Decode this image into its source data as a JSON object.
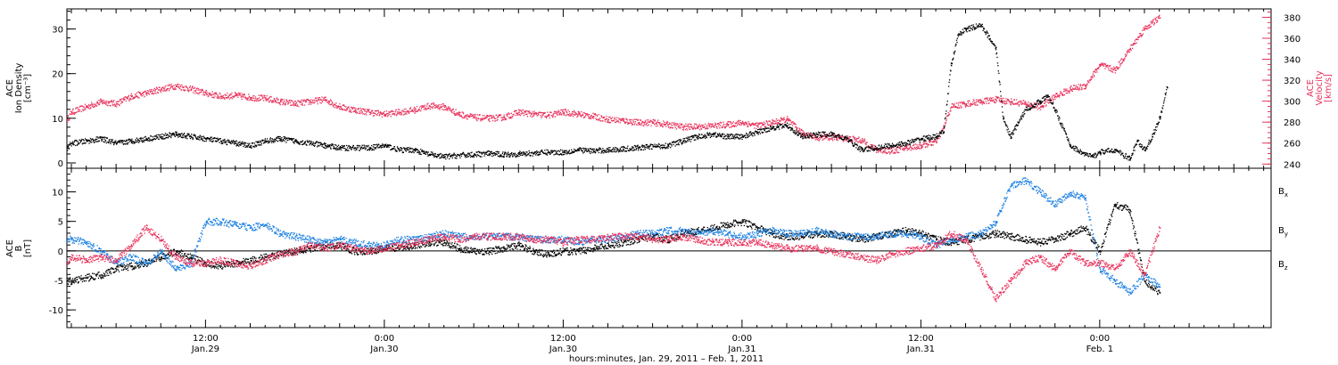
{
  "colors": {
    "black": "#000000",
    "pink": "#e8305a",
    "blue": "#1a7fe0"
  },
  "xlabel": "hours:minutes, Jan. 29, 2011 – Feb.  1, 2011",
  "chart_data": [
    {
      "type": "scatter",
      "panel": "top",
      "ylabel_lines": [
        "ACE",
        "Ion Density",
        "[cm⁻³]"
      ],
      "y2label_lines": [
        "ACE",
        "Velocity",
        "[km/s]"
      ],
      "x_unit": "hours since Jan. 29, 2011 0:00",
      "xlim": [
        2.7,
        83.5
      ],
      "ylim": [
        -1.2,
        34.5
      ],
      "y2lim": [
        236,
        388
      ],
      "y_ticks": [
        0,
        10,
        20,
        30
      ],
      "y2_ticks": [
        240,
        260,
        280,
        300,
        320,
        340,
        360,
        380
      ],
      "grid": false,
      "series": [
        {
          "axis": "left",
          "color": "#000000",
          "x": [
            2.7,
            3,
            4,
            5,
            6,
            7,
            8,
            9,
            10,
            11,
            12,
            13,
            14,
            15,
            16,
            17,
            18,
            19,
            20,
            21,
            22,
            23,
            24,
            25,
            26,
            27,
            28,
            29,
            30,
            31,
            32,
            33,
            34,
            35,
            36,
            37,
            38,
            39,
            40,
            41,
            42,
            43,
            44,
            45,
            46,
            47,
            48,
            49,
            50,
            51,
            52,
            53,
            54,
            55,
            56,
            57,
            58,
            59,
            60,
            61,
            61.5,
            62,
            62.5,
            63,
            64,
            65,
            65.5,
            66,
            67,
            68,
            68.5,
            69,
            70,
            70.5,
            71,
            71.5,
            72,
            73,
            74,
            74.5,
            75,
            75.5,
            76,
            76.5
          ],
          "values": [
            3.5,
            4.5,
            5,
            5.5,
            4.5,
            5,
            5.5,
            6,
            6.5,
            6,
            5.5,
            5,
            4.5,
            4,
            5,
            5.5,
            5,
            4.5,
            4,
            3.5,
            3.5,
            3.5,
            4,
            3,
            3,
            2,
            1.5,
            1.8,
            2,
            2.2,
            2,
            2.1,
            2.3,
            2.5,
            2.5,
            3,
            2.8,
            3,
            3.2,
            3.5,
            3.8,
            4,
            5,
            6,
            6.5,
            6,
            6,
            7,
            8,
            8.5,
            6,
            6.5,
            6.5,
            5.5,
            3,
            3.5,
            4,
            4.5,
            5.5,
            6,
            7,
            22,
            29,
            30,
            31,
            26,
            10,
            6,
            12,
            14,
            15,
            12,
            4,
            3,
            2,
            1.5,
            2.5,
            3,
            1,
            5,
            3,
            6,
            10,
            17
          ]
        },
        {
          "axis": "right",
          "color": "#e8305a",
          "x": [
            2.7,
            3,
            4,
            5,
            6,
            7,
            8,
            9,
            10,
            11,
            12,
            13,
            14,
            15,
            16,
            17,
            18,
            19,
            20,
            21,
            22,
            23,
            24,
            25,
            26,
            27,
            28,
            29,
            30,
            31,
            32,
            33,
            34,
            35,
            36,
            37,
            38,
            39,
            40,
            41,
            42,
            43,
            44,
            45,
            46,
            47,
            48,
            49,
            50,
            51,
            52,
            53,
            54,
            55,
            56,
            57,
            58,
            59,
            60,
            61,
            61.5,
            62,
            63,
            64,
            65,
            66,
            67,
            68,
            69,
            70,
            71,
            72,
            73,
            74,
            75,
            76
          ],
          "values": [
            283,
            290,
            295,
            300,
            298,
            305,
            308,
            312,
            315,
            312,
            308,
            305,
            306,
            304,
            303,
            300,
            298,
            300,
            302,
            295,
            292,
            290,
            288,
            290,
            292,
            296,
            295,
            288,
            285,
            284,
            285,
            290,
            288,
            287,
            290,
            288,
            286,
            283,
            282,
            280,
            280,
            278,
            276,
            276,
            277,
            278,
            280,
            277,
            280,
            283,
            270,
            266,
            266,
            265,
            263,
            254,
            253,
            256,
            258,
            262,
            275,
            295,
            298,
            300,
            302,
            300,
            298,
            295,
            305,
            312,
            315,
            335,
            330,
            350,
            370,
            380
          ]
        }
      ]
    },
    {
      "type": "scatter",
      "panel": "bottom",
      "ylabel_lines": [
        "ACE",
        "B",
        "[nT]"
      ],
      "x_unit": "hours since Jan. 29, 2011 0:00",
      "xlim": [
        2.7,
        83.5
      ],
      "ylim": [
        -13,
        14
      ],
      "y_ticks": [
        -10,
        -5,
        0,
        5,
        10
      ],
      "zero_line": true,
      "grid": false,
      "series": [
        {
          "name": "Bx",
          "color": "#000000",
          "x": [
            2.7,
            3,
            4,
            5,
            6,
            7,
            8,
            9,
            10,
            11,
            12,
            13,
            14,
            15,
            16,
            17,
            18,
            19,
            20,
            21,
            22,
            23,
            24,
            25,
            26,
            27,
            28,
            29,
            30,
            31,
            32,
            33,
            34,
            35,
            36,
            37,
            38,
            39,
            40,
            41,
            42,
            43,
            44,
            45,
            46,
            47,
            48,
            49,
            50,
            51,
            52,
            53,
            54,
            55,
            56,
            57,
            58,
            59,
            60,
            61,
            62,
            63,
            64,
            65,
            66,
            67,
            68,
            69,
            70,
            71,
            72,
            73,
            74,
            75,
            76
          ],
          "values": [
            -5,
            -5,
            -4.5,
            -4,
            -3,
            -2.5,
            -2,
            -1,
            0,
            -1,
            -2,
            -2.5,
            -2,
            -1.5,
            -1,
            -0.5,
            0,
            0.5,
            1,
            1,
            0,
            0,
            0.5,
            0.5,
            1,
            1.5,
            1.5,
            0.5,
            0,
            0,
            0.5,
            1,
            0,
            -0.5,
            0,
            0,
            0.5,
            1,
            1.5,
            2,
            2.5,
            2,
            3,
            3.5,
            4,
            4.5,
            5,
            4,
            3,
            2.5,
            2.5,
            3,
            3,
            2.5,
            2,
            2.5,
            3,
            3.5,
            3,
            2,
            1.5,
            2,
            2.5,
            3,
            2.5,
            2,
            1.5,
            2,
            3,
            4,
            0,
            8,
            7,
            -5,
            -7
          ]
        },
        {
          "name": "By",
          "color": "#1a7fe0",
          "x": [
            2.7,
            3,
            4,
            5,
            6,
            7,
            8,
            9,
            10,
            11,
            12,
            13,
            14,
            15,
            16,
            17,
            18,
            19,
            20,
            21,
            22,
            23,
            24,
            25,
            26,
            27,
            28,
            29,
            30,
            31,
            32,
            33,
            34,
            35,
            36,
            37,
            38,
            39,
            40,
            41,
            42,
            43,
            44,
            45,
            46,
            47,
            48,
            49,
            50,
            51,
            52,
            53,
            54,
            55,
            56,
            57,
            58,
            59,
            60,
            61,
            62,
            63,
            64,
            65,
            66,
            67,
            68,
            69,
            70,
            71,
            72,
            73,
            74,
            75,
            76
          ],
          "values": [
            2,
            2,
            1.5,
            0,
            -2,
            -1,
            -2,
            0,
            -3,
            -2,
            5,
            5,
            4.5,
            4,
            4.5,
            3,
            2.5,
            2,
            1.5,
            2,
            1.5,
            1,
            1,
            2,
            2,
            2.5,
            3,
            2.5,
            2.5,
            2.5,
            2.5,
            2.5,
            2,
            2,
            2,
            1.5,
            2,
            2,
            2.5,
            3,
            3,
            3.5,
            3.5,
            3,
            3.5,
            3,
            2.5,
            3,
            3.5,
            3,
            3,
            3.5,
            3,
            2.5,
            2.5,
            2.5,
            3,
            3,
            2.5,
            1,
            2,
            2.5,
            3,
            5,
            11,
            12,
            10,
            8,
            10,
            9,
            -3,
            -5,
            -7,
            -4,
            -6
          ]
        },
        {
          "name": "Bz",
          "color": "#e8305a",
          "x": [
            2.7,
            3,
            4,
            5,
            6,
            7,
            8,
            9,
            10,
            11,
            12,
            13,
            14,
            15,
            16,
            17,
            18,
            19,
            20,
            21,
            22,
            23,
            24,
            25,
            26,
            27,
            28,
            29,
            30,
            31,
            32,
            33,
            34,
            35,
            36,
            37,
            38,
            39,
            40,
            41,
            42,
            43,
            44,
            45,
            46,
            47,
            48,
            49,
            50,
            51,
            52,
            53,
            54,
            55,
            56,
            57,
            58,
            59,
            60,
            61,
            62,
            63,
            64,
            65,
            66,
            67,
            68,
            69,
            70,
            71,
            72,
            73,
            74,
            75,
            76
          ],
          "values": [
            -2,
            -1,
            -1.5,
            -1,
            -1.5,
            1,
            4,
            2,
            -1,
            -2,
            -2,
            -1.5,
            -2,
            -2.5,
            -1.5,
            -0.5,
            0,
            1,
            0.5,
            1,
            0.5,
            0,
            0.5,
            1,
            1.5,
            2,
            2.5,
            2,
            2.5,
            2.5,
            2.5,
            2.5,
            2,
            2,
            1.5,
            2,
            2,
            2.5,
            2.5,
            2.5,
            2,
            2,
            2.5,
            2,
            1.5,
            1.5,
            1.5,
            1.5,
            1,
            0.5,
            0.5,
            0.5,
            0,
            -0.5,
            -1,
            -1.5,
            -0.5,
            0,
            0.5,
            1,
            3,
            2,
            -3,
            -8,
            -5,
            -2,
            -1,
            -3,
            0,
            -2,
            -2,
            -3,
            0,
            -4,
            4
          ]
        }
      ],
      "legend": {
        "placement": "right",
        "items": [
          {
            "label": "B",
            "sub": "x",
            "color": "#000000"
          },
          {
            "label": "B",
            "sub": "y",
            "color": "#1a7fe0"
          },
          {
            "label": "B",
            "sub": "z",
            "color": "#e8305a"
          }
        ]
      }
    }
  ],
  "x_ticks": [
    {
      "x": 12,
      "time": "12:00",
      "date": "Jan.29"
    },
    {
      "x": 24,
      "time": "0:00",
      "date": "Jan.30"
    },
    {
      "x": 36,
      "time": "12:00",
      "date": "Jan.30"
    },
    {
      "x": 48,
      "time": "0:00",
      "date": "Jan.31"
    },
    {
      "x": 60,
      "time": "12:00",
      "date": "Jan.31"
    },
    {
      "x": 72,
      "time": "0:00",
      "date": "Feb. 1"
    }
  ]
}
